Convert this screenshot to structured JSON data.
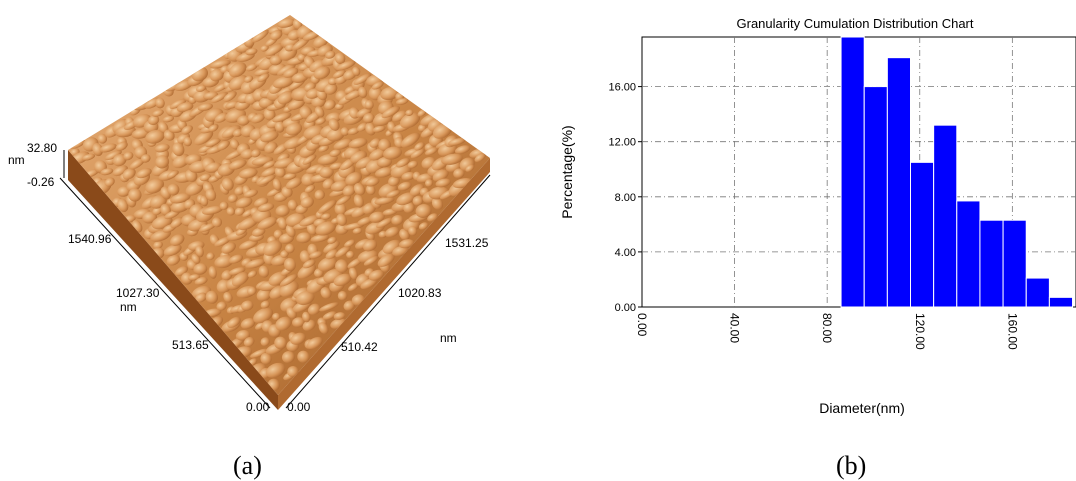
{
  "panel_a": {
    "caption": "(a)",
    "z_unit": "nm",
    "z_max": "32.80",
    "z_min": "-0.26",
    "left_axis_ticks": [
      "1540.96",
      "1027.30",
      "513.65",
      "0.00"
    ],
    "left_axis_unit": "nm",
    "right_axis_ticks": [
      "1531.25",
      "1020.83",
      "510.42",
      "0.00"
    ],
    "right_axis_unit": "nm",
    "colors": {
      "surface_light": "#e8b07a",
      "surface_mid": "#c98545",
      "surface_dark": "#8a4a1a"
    }
  },
  "panel_b": {
    "caption": "(b)"
  },
  "chart_data": {
    "type": "bar",
    "title": "Granularity Cumulation Distribution  Chart",
    "xlabel": "Diameter(nm)",
    "ylabel": "Percentage(%)",
    "xlim": [
      0,
      180
    ],
    "ylim": [
      0,
      19.6
    ],
    "x_ticks": [
      "0.00",
      "40.00",
      "80.00",
      "120.00",
      "160.00"
    ],
    "y_ticks": [
      "0.00",
      "4.00",
      "8.00",
      "12.00",
      "16.00"
    ],
    "grid": true,
    "bar_color": "#0000ff",
    "bars": [
      {
        "start": 86,
        "end": 96,
        "value": 19.6
      },
      {
        "start": 96,
        "end": 106,
        "value": 16.0
      },
      {
        "start": 106,
        "end": 116,
        "value": 18.1
      },
      {
        "start": 116,
        "end": 126,
        "value": 10.5
      },
      {
        "start": 126,
        "end": 136,
        "value": 13.2
      },
      {
        "start": 136,
        "end": 146,
        "value": 7.7
      },
      {
        "start": 146,
        "end": 156,
        "value": 6.3
      },
      {
        "start": 156,
        "end": 166,
        "value": 6.3
      },
      {
        "start": 166,
        "end": 176,
        "value": 2.1
      },
      {
        "start": 176,
        "end": 186,
        "value": 0.7
      }
    ]
  }
}
